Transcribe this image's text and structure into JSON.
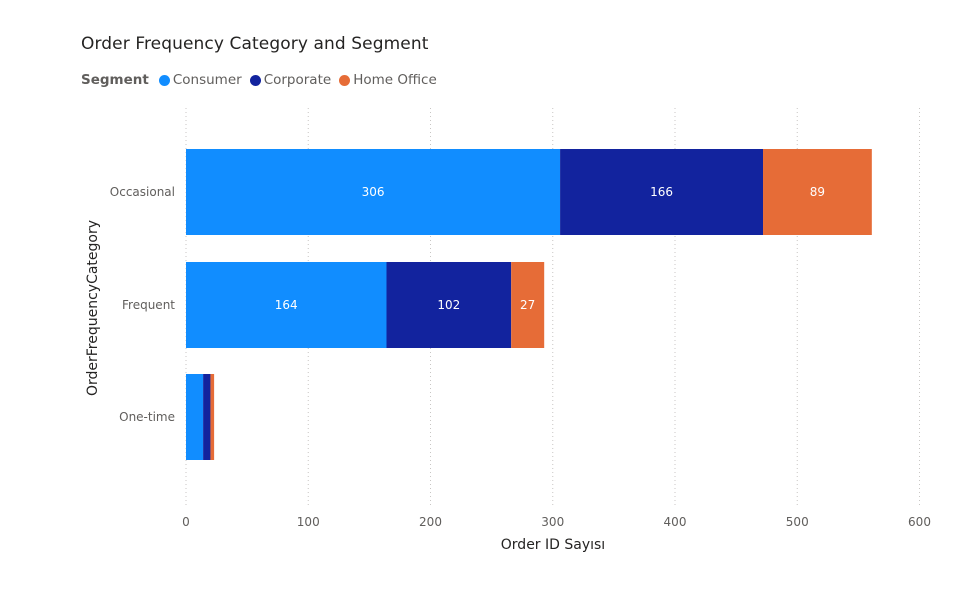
{
  "chart_data": {
    "type": "bar",
    "orientation": "horizontal",
    "stacked": true,
    "title": "Order Frequency Category and Segment",
    "legend_title": "Segment",
    "legend_position": "top-left",
    "xlabel": "Order ID Sayısı",
    "ylabel": "OrderFrequencyCategory",
    "xlim": [
      0,
      600
    ],
    "xticks": [
      0,
      100,
      200,
      300,
      400,
      500,
      600
    ],
    "grid": true,
    "categories": [
      "Occasional",
      "Frequent",
      "One-time"
    ],
    "series": [
      {
        "name": "Consumer",
        "color": "#118DFF",
        "values": [
          306,
          164,
          14
        ]
      },
      {
        "name": "Corporate",
        "color": "#12239E",
        "values": [
          166,
          102,
          6
        ]
      },
      {
        "name": "Home Office",
        "color": "#E66C37",
        "values": [
          89,
          27,
          3
        ]
      }
    ],
    "data_labels": [
      [
        "306",
        "166",
        "89"
      ],
      [
        "164",
        "102",
        "27"
      ],
      [
        "",
        "",
        ""
      ]
    ]
  }
}
